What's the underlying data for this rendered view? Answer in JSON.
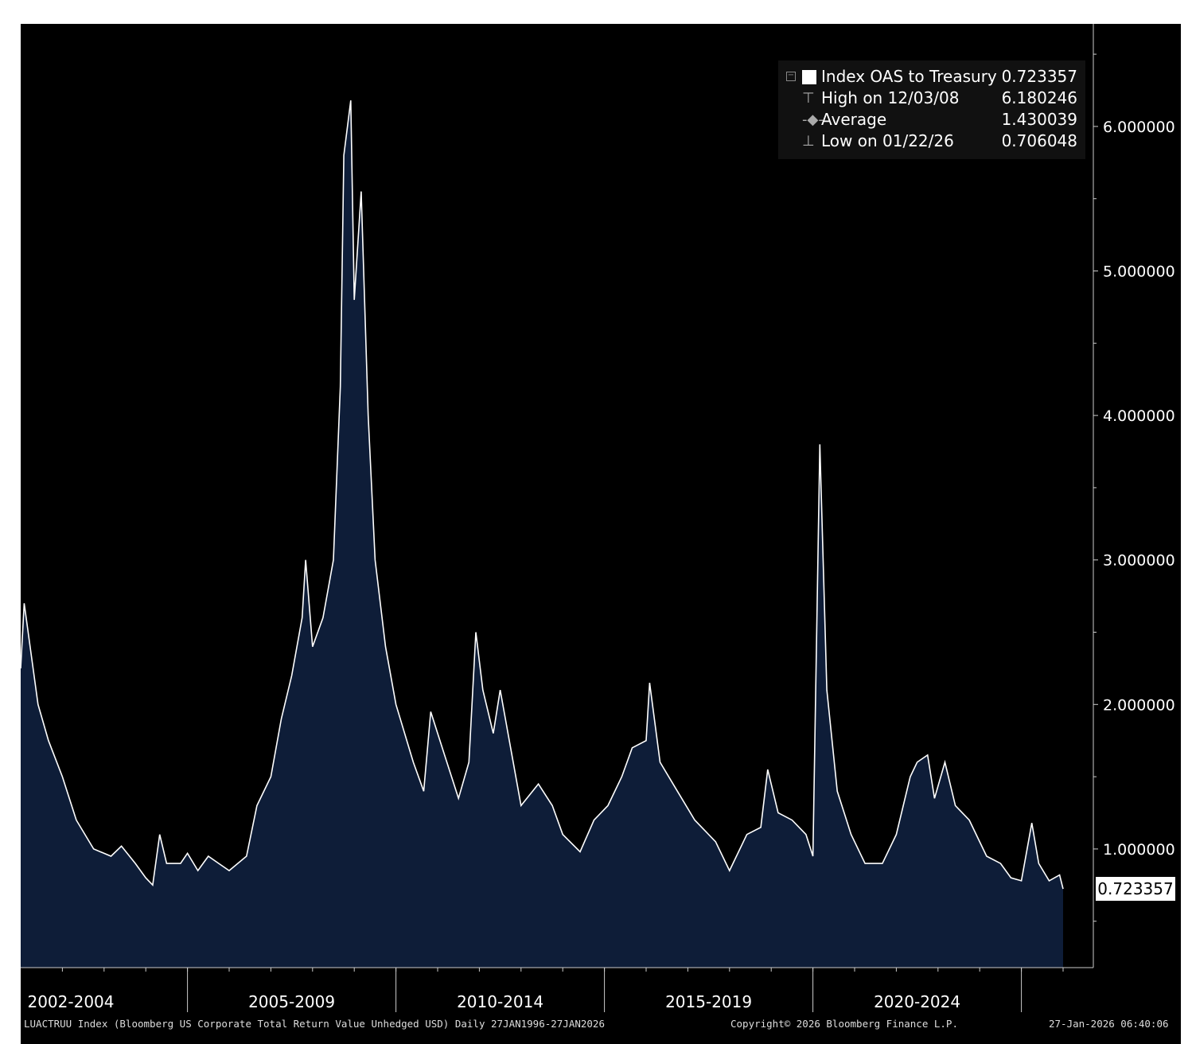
{
  "chart_data": {
    "type": "area",
    "title": "",
    "xlabel": "",
    "ylabel": "",
    "x_range": [
      "2001-01",
      "2026-01"
    ],
    "ylim": [
      0,
      6.5
    ],
    "y_ticks": [
      1.0,
      2.0,
      3.0,
      4.0,
      5.0,
      6.0
    ],
    "y_tick_labels": [
      "1.000000",
      "2.000000",
      "3.000000",
      "4.000000",
      "5.000000",
      "6.000000"
    ],
    "x_period_labels": [
      "2002-2004",
      "2005-2009",
      "2010-2014",
      "2015-2019",
      "2020-2024"
    ],
    "grid": false,
    "legend_position": "top-right",
    "background_color": "#000000",
    "fill_color": "#0e1d38",
    "line_color": "#ffffff",
    "series": [
      {
        "name": "Index OAS to Treasury",
        "points": [
          [
            "2001-01",
            2.25
          ],
          [
            "2001-02",
            2.7
          ],
          [
            "2001-06",
            2.0
          ],
          [
            "2001-09",
            1.75
          ],
          [
            "2002-01",
            1.5
          ],
          [
            "2002-05",
            1.2
          ],
          [
            "2002-10",
            1.0
          ],
          [
            "2003-03",
            0.95
          ],
          [
            "2003-06",
            1.02
          ],
          [
            "2003-10",
            0.9
          ],
          [
            "2004-01",
            0.8
          ],
          [
            "2004-03",
            0.75
          ],
          [
            "2004-05",
            1.1
          ],
          [
            "2004-07",
            0.9
          ],
          [
            "2004-11",
            0.9
          ],
          [
            "2005-01",
            0.97
          ],
          [
            "2005-04",
            0.85
          ],
          [
            "2005-07",
            0.95
          ],
          [
            "2005-10",
            0.9
          ],
          [
            "2006-01",
            0.85
          ],
          [
            "2006-06",
            0.95
          ],
          [
            "2006-09",
            1.3
          ],
          [
            "2007-01",
            1.5
          ],
          [
            "2007-04",
            1.9
          ],
          [
            "2007-07",
            2.2
          ],
          [
            "2007-10",
            2.6
          ],
          [
            "2007-11",
            3.0
          ],
          [
            "2008-01",
            2.4
          ],
          [
            "2008-04",
            2.6
          ],
          [
            "2008-07",
            3.0
          ],
          [
            "2008-09",
            4.2
          ],
          [
            "2008-10",
            5.8
          ],
          [
            "2008-12",
            6.18
          ],
          [
            "2009-01",
            4.8
          ],
          [
            "2009-03",
            5.55
          ],
          [
            "2009-05",
            4.0
          ],
          [
            "2009-07",
            3.0
          ],
          [
            "2009-10",
            2.4
          ],
          [
            "2010-01",
            2.0
          ],
          [
            "2010-06",
            1.6
          ],
          [
            "2010-09",
            1.4
          ],
          [
            "2010-11",
            1.95
          ],
          [
            "2011-03",
            1.65
          ],
          [
            "2011-07",
            1.35
          ],
          [
            "2011-10",
            1.6
          ],
          [
            "2011-12",
            2.5
          ],
          [
            "2012-02",
            2.1
          ],
          [
            "2012-05",
            1.8
          ],
          [
            "2012-07",
            2.1
          ],
          [
            "2012-10",
            1.7
          ],
          [
            "2013-01",
            1.3
          ],
          [
            "2013-06",
            1.45
          ],
          [
            "2013-10",
            1.3
          ],
          [
            "2014-01",
            1.1
          ],
          [
            "2014-06",
            0.98
          ],
          [
            "2014-10",
            1.2
          ],
          [
            "2015-02",
            1.3
          ],
          [
            "2015-06",
            1.5
          ],
          [
            "2015-09",
            1.7
          ],
          [
            "2016-01",
            1.75
          ],
          [
            "2016-02",
            2.15
          ],
          [
            "2016-05",
            1.6
          ],
          [
            "2016-10",
            1.4
          ],
          [
            "2017-03",
            1.2
          ],
          [
            "2017-09",
            1.05
          ],
          [
            "2018-01",
            0.85
          ],
          [
            "2018-06",
            1.1
          ],
          [
            "2018-10",
            1.15
          ],
          [
            "2018-12",
            1.55
          ],
          [
            "2019-03",
            1.25
          ],
          [
            "2019-07",
            1.2
          ],
          [
            "2019-11",
            1.1
          ],
          [
            "2020-01",
            0.95
          ],
          [
            "2020-03",
            3.8
          ],
          [
            "2020-05",
            2.1
          ],
          [
            "2020-08",
            1.4
          ],
          [
            "2020-12",
            1.1
          ],
          [
            "2021-04",
            0.9
          ],
          [
            "2021-09",
            0.9
          ],
          [
            "2022-01",
            1.1
          ],
          [
            "2022-05",
            1.5
          ],
          [
            "2022-07",
            1.6
          ],
          [
            "2022-10",
            1.65
          ],
          [
            "2022-12",
            1.35
          ],
          [
            "2023-03",
            1.6
          ],
          [
            "2023-06",
            1.3
          ],
          [
            "2023-10",
            1.2
          ],
          [
            "2024-03",
            0.95
          ],
          [
            "2024-07",
            0.9
          ],
          [
            "2024-10",
            0.8
          ],
          [
            "2025-01",
            0.78
          ],
          [
            "2025-04",
            1.18
          ],
          [
            "2025-06",
            0.9
          ],
          [
            "2025-09",
            0.78
          ],
          [
            "2025-12",
            0.82
          ],
          [
            "2026-01",
            0.723357
          ]
        ]
      }
    ],
    "legend": [
      {
        "label": "Index OAS to Treasury",
        "value": "0.723357"
      },
      {
        "label": "High on 12/03/08",
        "value": "6.180246"
      },
      {
        "label": "Average",
        "value": "1.430039"
      },
      {
        "label": "Low on 01/22/26",
        "value": "0.706048"
      }
    ],
    "last_value_label": "0.723357",
    "footer": {
      "source": "LUACTRUU Index (Bloomberg US Corporate Total Return Value Unhedged USD) Daily 27JAN1996-27JAN2026",
      "copyright": "Copyright© 2026 Bloomberg Finance L.P.",
      "timestamp": "27-Jan-2026 06:40:06"
    }
  }
}
